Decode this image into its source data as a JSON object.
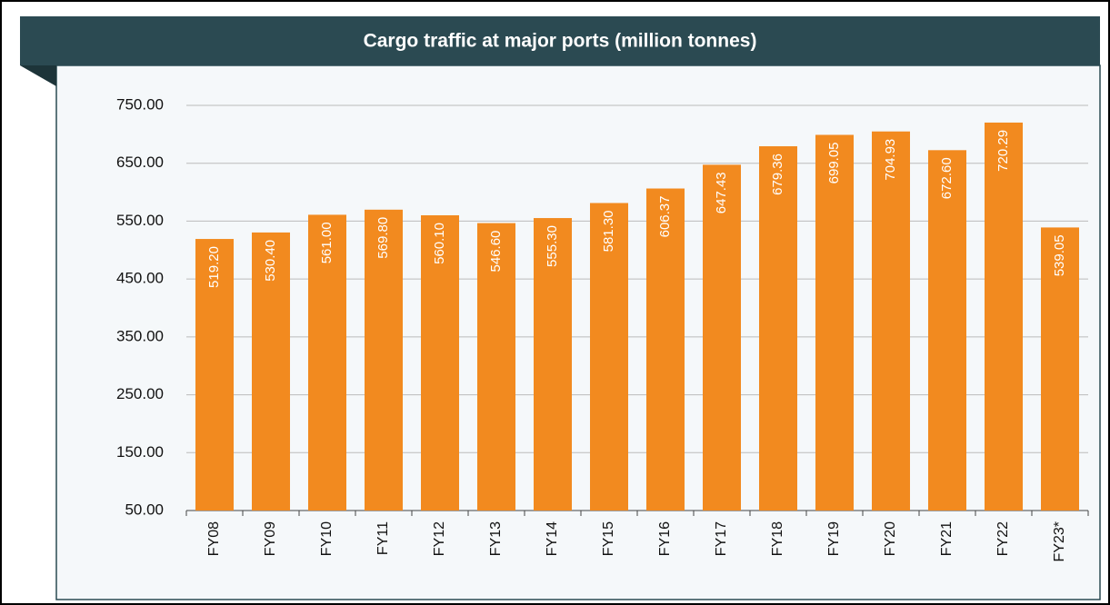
{
  "chart_data": {
    "type": "bar",
    "title": "Cargo traffic at major ports (million tonnes)",
    "categories": [
      "FY08",
      "FY09",
      "FY10",
      "FY11",
      "FY12",
      "FY13",
      "FY14",
      "FY15",
      "FY16",
      "FY17",
      "FY18",
      "FY19",
      "FY20",
      "FY21",
      "FY22",
      "FY23*"
    ],
    "values": [
      519.2,
      530.4,
      561.0,
      569.8,
      560.1,
      546.6,
      555.3,
      581.3,
      606.37,
      647.43,
      679.36,
      699.05,
      704.93,
      672.6,
      720.29,
      539.05
    ],
    "value_labels": [
      "519.20",
      "530.40",
      "561.00",
      "569.80",
      "560.10",
      "546.60",
      "555.30",
      "581.30",
      "606.37",
      "647.43",
      "679.36",
      "699.05",
      "704.93",
      "672.60",
      "720.29",
      "539.05"
    ],
    "color": "#f28a1f",
    "ylim": [
      50,
      750
    ],
    "yticks": [
      {
        "value": 50,
        "label": "50.00"
      },
      {
        "value": 150,
        "label": "150.00"
      },
      {
        "value": 250,
        "label": "250.00"
      },
      {
        "value": 350,
        "label": "350.00"
      },
      {
        "value": 450,
        "label": "450.00"
      },
      {
        "value": 550,
        "label": "550.00"
      },
      {
        "value": 650,
        "label": "650.00"
      },
      {
        "value": 750,
        "label": "750.00"
      }
    ],
    "grid": true
  }
}
